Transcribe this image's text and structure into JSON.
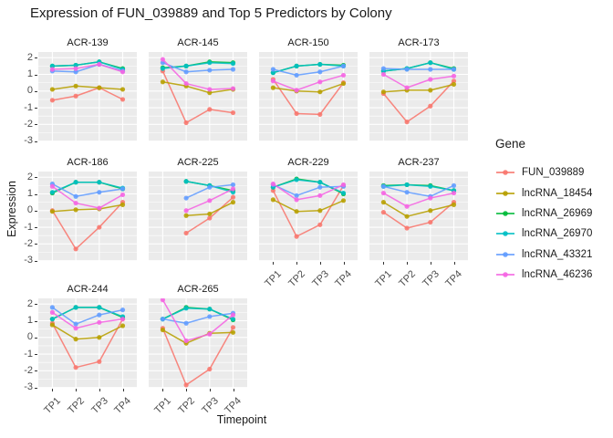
{
  "page": {
    "background": "#FFFFFF"
  },
  "chart_data": {
    "type": "line",
    "title": "Expression of FUN_039889 and Top 5 Predictors by Colony",
    "xlabel": "Timepoint",
    "ylabel": "Expression",
    "legend_title": "Gene",
    "legend_position": "right",
    "x_categories": [
      "TP1",
      "TP2",
      "TP3",
      "TP4"
    ],
    "yticks": [
      2,
      1,
      0,
      -1,
      -2,
      -3
    ],
    "ylim": [
      -3.02,
      2.34
    ],
    "grid": "white major+minor horizontal and major vertical gridlines on #EBEBEB panels",
    "panel_background": "#EBEBEB",
    "gridline_color": "#FFFFFF",
    "genes": [
      {
        "name": "FUN_039889",
        "color": "#F8766D"
      },
      {
        "name": "lncRNA_18454",
        "color": "#B79F00"
      },
      {
        "name": "lncRNA_26969",
        "color": "#00BA38"
      },
      {
        "name": "lncRNA_26970",
        "color": "#00BFC4"
      },
      {
        "name": "lncRNA_43321",
        "color": "#619CFF"
      },
      {
        "name": "lncRNA_46236",
        "color": "#F564E3"
      }
    ],
    "facets": [
      {
        "colony": "ACR-139",
        "values": [
          [
            -0.55,
            -0.3,
            0.2,
            -0.5
          ],
          [
            0.1,
            0.3,
            0.2,
            0.1
          ],
          [
            1.5,
            1.55,
            1.75,
            1.35
          ],
          [
            1.5,
            1.55,
            1.75,
            1.3
          ],
          [
            1.2,
            1.15,
            1.6,
            1.2
          ],
          [
            1.3,
            1.35,
            1.6,
            1.15
          ]
        ]
      },
      {
        "colony": "ACR-145",
        "values": [
          [
            1.2,
            -1.9,
            -1.1,
            -1.3
          ],
          [
            0.55,
            0.3,
            -0.1,
            0.1
          ],
          [
            1.4,
            1.5,
            1.75,
            1.7
          ],
          [
            1.35,
            1.5,
            1.7,
            1.65
          ],
          [
            1.7,
            1.15,
            1.25,
            1.3
          ],
          [
            1.9,
            0.45,
            0.1,
            0.15
          ]
        ]
      },
      {
        "colony": "ACR-150",
        "values": [
          [
            0.7,
            -1.35,
            -1.4,
            0.5
          ],
          [
            0.2,
            0.0,
            -0.05,
            0.45
          ],
          [
            1.1,
            1.5,
            1.6,
            1.55
          ],
          [
            1.1,
            1.5,
            1.6,
            1.5
          ],
          [
            1.3,
            0.95,
            1.15,
            1.5
          ],
          [
            0.6,
            0.05,
            0.55,
            0.95
          ]
        ]
      },
      {
        "colony": "ACR-173",
        "values": [
          [
            -0.15,
            -1.85,
            -0.9,
            0.6
          ],
          [
            -0.05,
            0.05,
            0.05,
            0.4
          ],
          [
            1.2,
            1.35,
            1.7,
            1.35
          ],
          [
            1.2,
            1.35,
            1.7,
            1.3
          ],
          [
            1.35,
            1.3,
            1.3,
            1.3
          ],
          [
            1.0,
            0.2,
            0.7,
            0.9
          ]
        ]
      },
      {
        "colony": "ACR-186",
        "values": [
          [
            0.0,
            -2.3,
            -1.0,
            0.5
          ],
          [
            -0.05,
            0.05,
            0.1,
            0.35
          ],
          [
            1.05,
            1.7,
            1.7,
            1.3
          ],
          [
            1.1,
            1.7,
            1.7,
            1.35
          ],
          [
            1.6,
            0.85,
            1.1,
            1.3
          ],
          [
            1.45,
            0.45,
            0.15,
            0.95
          ]
        ]
      },
      {
        "colony": "ACR-225",
        "values": [
          [
            null,
            -1.35,
            -0.45,
            0.8
          ],
          [
            null,
            -0.3,
            -0.2,
            0.5
          ],
          [
            null,
            1.75,
            1.5,
            1.2
          ],
          [
            null,
            1.75,
            1.5,
            1.1
          ],
          [
            null,
            0.75,
            1.4,
            1.55
          ],
          [
            null,
            0.0,
            0.6,
            1.3
          ]
        ]
      },
      {
        "colony": "ACR-229",
        "values": [
          [
            1.2,
            -1.55,
            -0.85,
            1.5
          ],
          [
            0.65,
            -0.05,
            0.0,
            0.6
          ],
          [
            1.4,
            1.9,
            1.7,
            1.0
          ],
          [
            1.4,
            1.85,
            1.7,
            1.05
          ],
          [
            1.55,
            0.9,
            1.4,
            1.45
          ],
          [
            1.6,
            0.65,
            0.9,
            1.55
          ]
        ]
      },
      {
        "colony": "ACR-237",
        "values": [
          [
            -0.1,
            -1.05,
            -0.7,
            0.5
          ],
          [
            0.5,
            -0.35,
            0.0,
            0.35
          ],
          [
            1.5,
            1.55,
            1.5,
            1.2
          ],
          [
            1.45,
            1.55,
            1.45,
            1.2
          ],
          [
            1.45,
            1.1,
            0.85,
            1.5
          ],
          [
            1.05,
            0.25,
            0.75,
            1.05
          ]
        ]
      },
      {
        "colony": "ACR-244",
        "values": [
          [
            0.85,
            -1.8,
            -1.45,
            1.1
          ],
          [
            0.75,
            -0.1,
            0.0,
            0.7
          ],
          [
            1.1,
            1.8,
            1.8,
            1.2
          ],
          [
            1.1,
            1.8,
            1.8,
            1.25
          ],
          [
            1.8,
            0.8,
            1.35,
            1.65
          ],
          [
            1.5,
            0.55,
            0.9,
            1.1
          ]
        ]
      },
      {
        "colony": "ACR-265",
        "values": [
          [
            0.55,
            -2.85,
            -1.9,
            0.6
          ],
          [
            0.45,
            -0.35,
            0.25,
            0.3
          ],
          [
            1.1,
            1.8,
            1.7,
            1.05
          ],
          [
            1.1,
            1.75,
            1.7,
            1.1
          ],
          [
            1.1,
            0.85,
            1.25,
            1.45
          ],
          [
            2.25,
            -0.2,
            0.2,
            1.35
          ]
        ]
      }
    ]
  }
}
